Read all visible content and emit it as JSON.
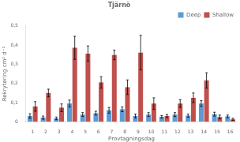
{
  "chart_data": {
    "type": "bar",
    "title": "Tjärnö",
    "xlabel": "Provtagningsdag",
    "ylabel": "Rekrytering cm² d⁻¹",
    "categories": [
      1,
      2,
      3,
      4,
      5,
      6,
      7,
      8,
      9,
      10,
      11,
      12,
      13,
      14,
      15,
      16
    ],
    "series": [
      {
        "name": "Deep",
        "color": "#5b9bd5",
        "values": [
          0.03,
          0.022,
          0.018,
          0.095,
          0.038,
          0.045,
          0.06,
          0.065,
          0.03,
          0.038,
          0.026,
          0.038,
          0.032,
          0.095,
          0.04,
          0.028
        ],
        "errors": [
          0.012,
          0.008,
          0.007,
          0.018,
          0.01,
          0.01,
          0.015,
          0.012,
          0.01,
          0.01,
          0.007,
          0.01,
          0.008,
          0.015,
          0.01,
          0.007
        ]
      },
      {
        "name": "Shallow",
        "color": "#c0504d",
        "values": [
          0.08,
          0.15,
          0.073,
          0.385,
          0.355,
          0.205,
          0.348,
          0.18,
          0.36,
          0.095,
          0.03,
          0.095,
          0.125,
          0.215,
          0.025,
          0.013
        ],
        "errors": [
          0.025,
          0.02,
          0.02,
          0.06,
          0.04,
          0.03,
          0.025,
          0.038,
          0.09,
          0.03,
          0.008,
          0.02,
          0.025,
          0.04,
          0.01,
          0.005
        ]
      }
    ],
    "ylim": [
      0,
      0.5
    ],
    "yticks": [
      0,
      {
        "value": 0.1,
        "label": "0,1"
      },
      {
        "value": 0.2,
        "label": "0,2"
      },
      {
        "value": 0.3,
        "label": "0,3"
      },
      {
        "value": 0.4,
        "label": "0,4"
      },
      {
        "value": 0.5,
        "label": "0,5"
      }
    ],
    "grid": false,
    "legend": "upper right"
  }
}
